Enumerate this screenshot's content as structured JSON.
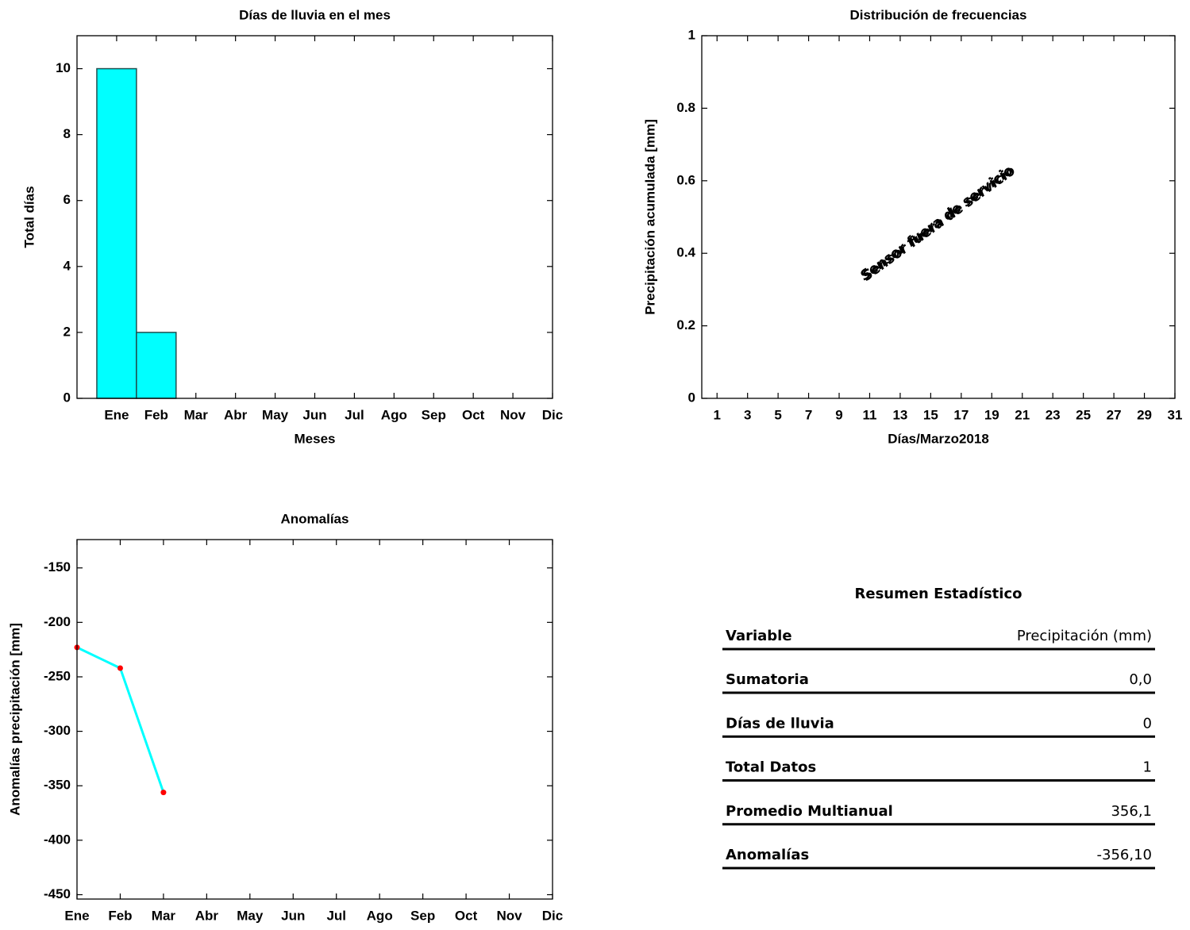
{
  "chart_data": [
    {
      "type": "bar",
      "title": "Días de lluvia en el mes",
      "xlabel": "Meses",
      "ylabel": "Total días",
      "categories": [
        "Ene",
        "Feb",
        "Mar",
        "Abr",
        "May",
        "Jun",
        "Jul",
        "Ago",
        "Sep",
        "Oct",
        "Nov",
        "Dic"
      ],
      "values": [
        10,
        2,
        0,
        0,
        0,
        0,
        0,
        0,
        0,
        0,
        0,
        0
      ],
      "color": "#00ffff",
      "edgecolor": "#1f4f4f",
      "ylim": [
        0,
        11
      ],
      "yticks": [
        0,
        2,
        4,
        6,
        8,
        10
      ]
    },
    {
      "type": "line",
      "title": "Distribución de frecuencias",
      "xlabel": "Días/Marzo2018",
      "ylabel": "Precipitación acumulada [mm]",
      "annotation": "Sensor fuera de servicio",
      "annotation_color": "#e00000",
      "xlim": [
        0,
        31
      ],
      "xticks": [
        1,
        3,
        5,
        7,
        9,
        11,
        13,
        15,
        17,
        19,
        21,
        23,
        25,
        27,
        29,
        31
      ],
      "ylim": [
        0,
        1
      ],
      "yticks": [
        0,
        0.2,
        0.4,
        0.6,
        0.8,
        1
      ]
    },
    {
      "type": "line",
      "title": "Anomalías",
      "ylabel": "Anomalías precipitación [mm]",
      "categories": [
        "Ene",
        "Feb",
        "Mar",
        "Abr",
        "May",
        "Jun",
        "Jul",
        "Ago",
        "Sep",
        "Oct",
        "Nov",
        "Dic"
      ],
      "values": [
        -223,
        -242,
        -356.1,
        null,
        null,
        null,
        null,
        null,
        null,
        null,
        null,
        null
      ],
      "color": "#00ffff",
      "marker_color": "#ff0000",
      "ylim": [
        -454,
        -124
      ],
      "yticks": [
        -450,
        -400,
        -350,
        -300,
        -250,
        -200,
        -150
      ]
    }
  ],
  "table": {
    "title": "Resumen Estadístico",
    "header": [
      "Variable",
      "Precipitación (mm)"
    ],
    "rows": [
      [
        "Sumatoria",
        "0,0"
      ],
      [
        "Días de lluvia",
        "0"
      ],
      [
        "Total Datos",
        "1"
      ],
      [
        "Promedio Multianual",
        "356,1"
      ],
      [
        "Anomalías",
        "-356,10"
      ]
    ]
  }
}
